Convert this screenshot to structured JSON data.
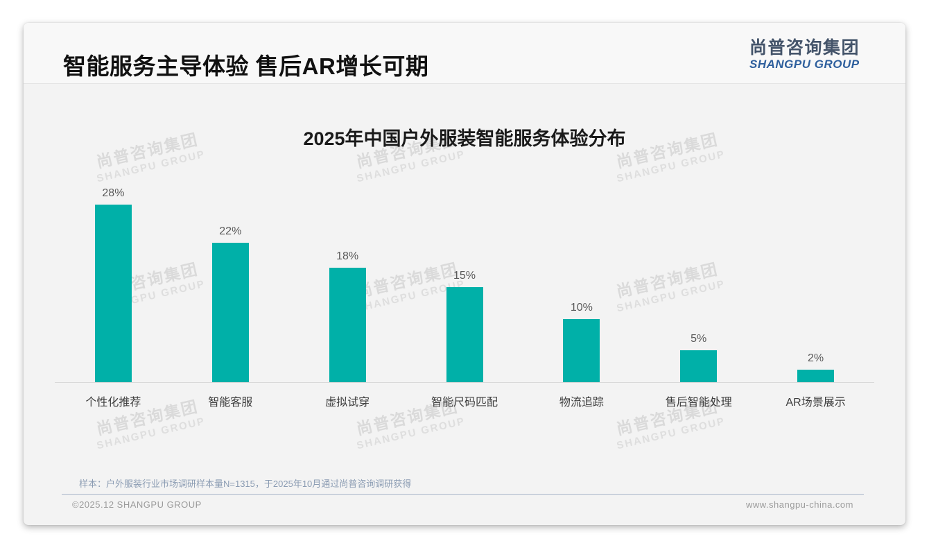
{
  "header": {
    "title": "智能服务主导体验 售后AR增长可期",
    "logo_cn": "尚普咨询集团",
    "logo_en": "SHANGPU GROUP"
  },
  "chart_data": {
    "type": "bar",
    "title": "2025年中国户外服装智能服务体验分布",
    "categories": [
      "个性化推荐",
      "智能客服",
      "虚拟试穿",
      "智能尺码匹配",
      "物流追踪",
      "售后智能处理",
      "AR场景展示"
    ],
    "values": [
      28,
      22,
      18,
      15,
      10,
      5,
      2
    ],
    "value_labels": [
      "28%",
      "22%",
      "18%",
      "15%",
      "10%",
      "5%",
      "2%"
    ],
    "xlabel": "",
    "ylabel": "",
    "ylim": [
      0,
      30
    ],
    "grid": false,
    "legend": "none",
    "bar_color": "#00b0a8"
  },
  "watermark": {
    "line1": "尚普咨询集团",
    "line2": "SHANGPU GROUP"
  },
  "footer": {
    "sample_note": "样本：户外服装行业市场调研样本量N=1315，于2025年10月通过尚普咨询调研获得",
    "copyright": "©2025.12 SHANGPU GROUP",
    "website": "www.shangpu-china.com"
  },
  "colors": {
    "accent_teal": "#00b0a8",
    "logo_dark": "#44546a",
    "logo_blue": "#2e5f9d",
    "note_blue_gray": "#8b9cb3"
  }
}
